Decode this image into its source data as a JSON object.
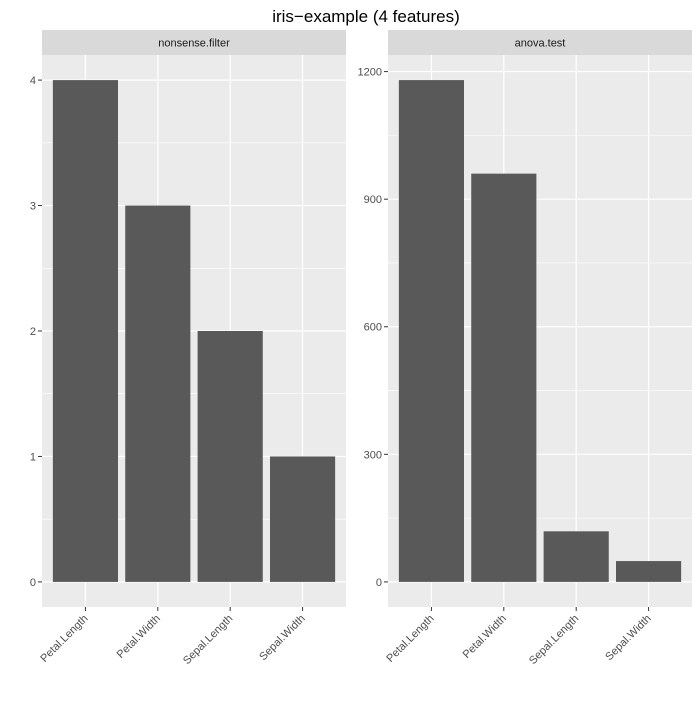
{
  "chart_data": {
    "type": "bar",
    "title": "iris−example (4 features)",
    "facets": [
      {
        "strip_label": "nonsense.filter",
        "categories": [
          "Petal.Length",
          "Petal.Width",
          "Sepal.Length",
          "Sepal.Width"
        ],
        "values": [
          4,
          3,
          2,
          1
        ],
        "yticks": [
          0,
          1,
          2,
          3,
          4
        ],
        "ylim": [
          -0.2,
          4.2
        ]
      },
      {
        "strip_label": "anova.test",
        "categories": [
          "Petal.Length",
          "Petal.Width",
          "Sepal.Length",
          "Sepal.Width"
        ],
        "values": [
          1180,
          960,
          119,
          49
        ],
        "yticks": [
          0,
          300,
          600,
          900,
          1200
        ],
        "ylim": [
          -59,
          1239
        ]
      }
    ],
    "bar_color": "#595959",
    "panel_color": "#EBEBEB",
    "strip_color": "#D9D9D9",
    "grid": true,
    "legend": "none"
  }
}
